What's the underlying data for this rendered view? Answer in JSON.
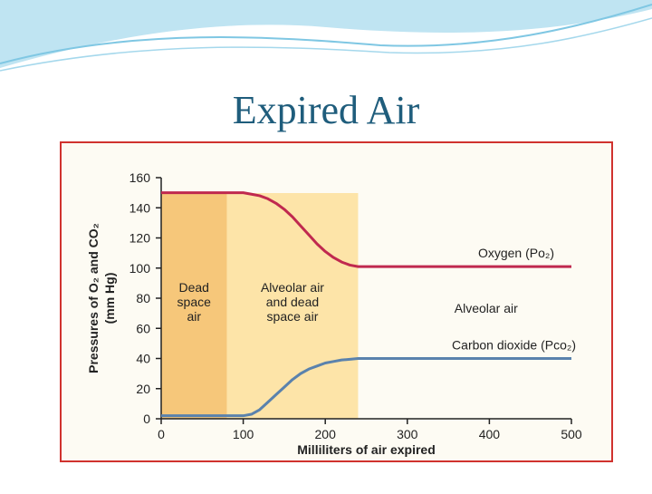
{
  "chart_data": {
    "type": "line",
    "title": "Expired Air",
    "xlabel": "Milliliters of air expired",
    "ylabel": [
      "Pressures of O₂ and CO₂",
      "(mm Hg)"
    ],
    "xlim": [
      0,
      500
    ],
    "xticks": [
      0,
      100,
      200,
      300,
      400,
      500
    ],
    "ylim": [
      0,
      160
    ],
    "yticks": [
      0,
      20,
      40,
      60,
      80,
      100,
      120,
      140,
      160
    ],
    "regions": [
      {
        "label": [
          "Dead",
          "space",
          "air"
        ],
        "x": [
          0,
          80
        ],
        "color": "#f6c77a"
      },
      {
        "label": [
          "Alveolar air",
          "and dead",
          "space air"
        ],
        "x": [
          80,
          240
        ],
        "color": "#fde4a8"
      },
      {
        "label": [
          "Alveolar air"
        ],
        "x": [
          240,
          500
        ]
      }
    ],
    "x": [
      0,
      50,
      100,
      110,
      120,
      130,
      140,
      150,
      160,
      170,
      180,
      190,
      200,
      210,
      220,
      230,
      240,
      300,
      400,
      500
    ],
    "series": [
      {
        "name": "Oxygen (Po₂)",
        "color": "#c0294f",
        "values": [
          150,
          150,
          150,
          149,
          148,
          146,
          143,
          139,
          134,
          128,
          122,
          116,
          111,
          107,
          104,
          102,
          101,
          101,
          101,
          101
        ]
      },
      {
        "name": "Carbon dioxide (Pco₂)",
        "color": "#5a82ad",
        "values": [
          2,
          2,
          2,
          3,
          6,
          11,
          16,
          21,
          26,
          30,
          33,
          35,
          37,
          38,
          39,
          39.5,
          40,
          40,
          40,
          40
        ]
      }
    ]
  }
}
